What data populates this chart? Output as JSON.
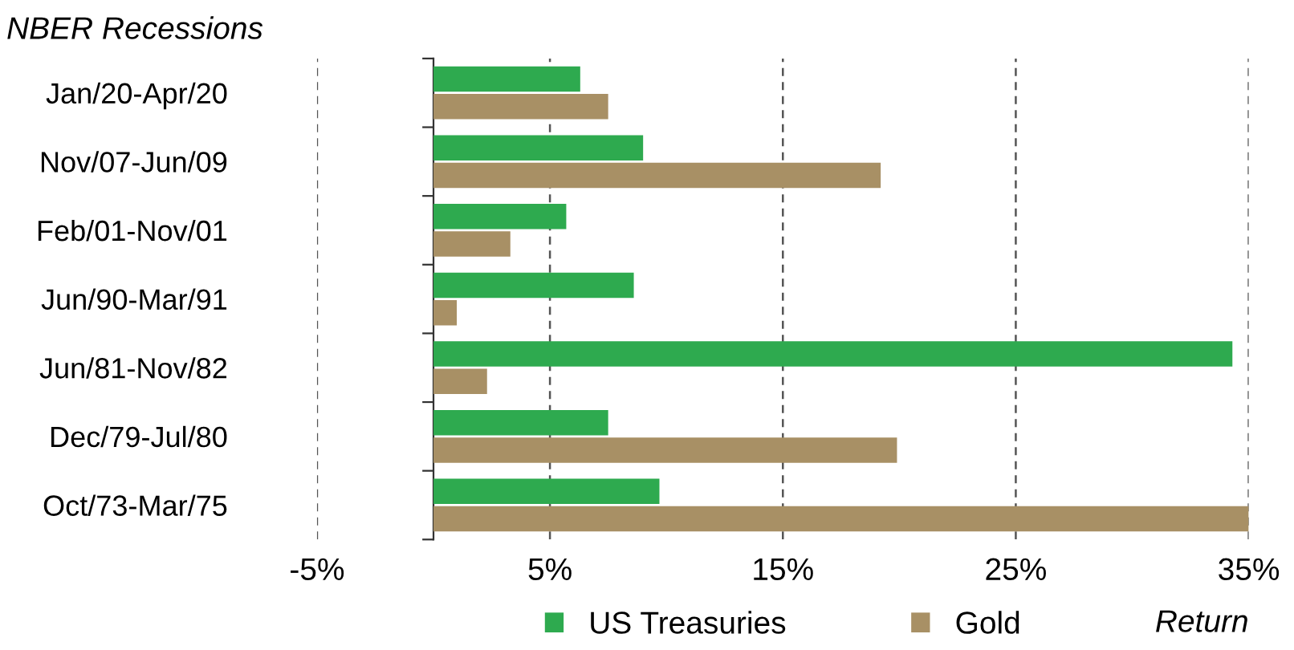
{
  "chart_data": {
    "type": "bar",
    "orientation": "horizontal",
    "title": "NBER Recessions",
    "xlabel": "Return",
    "categories": [
      "Jan/20-Apr/20",
      "Nov/07-Jun/09",
      "Feb/01-Nov/01",
      "Jun/90-Mar/91",
      "Jun/81-Nov/82",
      "Dec/79-Jul/80",
      "Oct/73-Mar/75"
    ],
    "series": [
      {
        "name": "US Treasuries",
        "color": "#2eaa4f",
        "values": [
          6.3,
          9.0,
          5.7,
          8.6,
          34.3,
          7.5,
          9.7
        ]
      },
      {
        "name": "Gold",
        "color": "#a89065",
        "values": [
          7.5,
          19.2,
          3.3,
          1.0,
          2.3,
          19.9,
          35
        ]
      }
    ],
    "xlim": [
      -5,
      35
    ],
    "xticks": [
      {
        "value": -5,
        "label": "-5%"
      },
      {
        "value": 5,
        "label": "5%"
      },
      {
        "value": 15,
        "label": "15%"
      },
      {
        "value": 25,
        "label": "25%"
      },
      {
        "value": 35,
        "label": "35%"
      }
    ],
    "grid": "x",
    "legend": "bottom"
  }
}
